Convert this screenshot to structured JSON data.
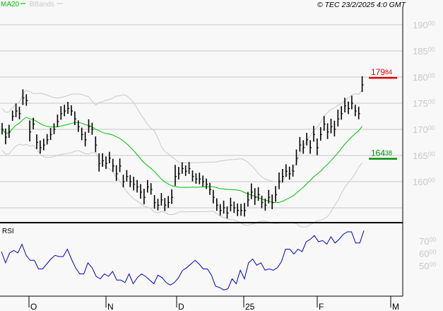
{
  "legend": {
    "ma_label": "MA20",
    "bb_label": "BBands",
    "ma_color": "#00c000",
    "bb_color": "#c8c8c8"
  },
  "copyright": "© TEC 23/2/2025 4:0 GMT",
  "rsi_label": "RSI",
  "chart_data": [
    {
      "type": "ohlc-bar",
      "ylim": [
        15350,
        19300
      ],
      "yticks": [
        {
          "value": 19000,
          "main": "190",
          "dec": "00"
        },
        {
          "value": 18500,
          "main": "185",
          "dec": "00"
        },
        {
          "value": 18000,
          "main": "180",
          "dec": "00"
        },
        {
          "value": 17500,
          "main": "175",
          "dec": "00"
        },
        {
          "value": 17000,
          "main": "170",
          "dec": "00"
        },
        {
          "value": 16500,
          "main": "165",
          "dec": "00"
        },
        {
          "value": 16000,
          "main": "160",
          "dec": "00"
        }
      ],
      "grid": true,
      "overlays": [
        "MA20",
        "BBands"
      ],
      "markers": [
        {
          "value": 17984,
          "main": "179",
          "dec": "84",
          "color": "#e00000"
        },
        {
          "value": 16438,
          "main": "164",
          "dec": "38",
          "color": "#009000"
        }
      ],
      "xticks": [
        "O",
        "N",
        "D",
        "25",
        "F",
        "M"
      ],
      "closes": [
        17000,
        16850,
        16950,
        17250,
        17350,
        17300,
        17600,
        17550,
        16950,
        17100,
        16750,
        16650,
        16700,
        16800,
        16900,
        17000,
        17150,
        17300,
        17350,
        17400,
        17350,
        17200,
        17050,
        16900,
        16800,
        17050,
        17000,
        16700,
        16350,
        16400,
        16350,
        16450,
        16300,
        16150,
        16300,
        16000,
        16100,
        16000,
        15950,
        15900,
        15800,
        15700,
        15900,
        15850,
        15600,
        15550,
        15650,
        15550,
        15600,
        15700,
        16100,
        16150,
        16250,
        16200,
        16250,
        16100,
        16050,
        16050,
        16000,
        15950,
        15850,
        15700,
        15550,
        15450,
        15500,
        15400,
        15550,
        15500,
        15450,
        15450,
        15450,
        15650,
        15800,
        15700,
        15750,
        15600,
        15550,
        15700,
        15600,
        15750,
        16000,
        16100,
        16200,
        16150,
        16200,
        16450,
        16700,
        16650,
        16800,
        16650,
        16900,
        16650,
        16900,
        17100,
        16950,
        17050,
        17000,
        17200,
        17300,
        17450,
        17400,
        17500,
        17350,
        17300,
        17850
      ],
      "ranges": [
        220,
        300,
        250,
        200,
        260,
        240,
        300,
        220,
        400,
        220,
        280,
        250,
        220,
        200,
        230,
        210,
        240,
        260,
        220,
        230,
        200,
        260,
        220,
        240,
        280,
        260,
        230,
        300,
        350,
        260,
        240,
        220,
        250,
        300,
        260,
        240,
        220,
        230,
        260,
        240,
        280,
        300,
        240,
        220,
        260,
        220,
        240,
        250,
        230,
        280,
        400,
        240,
        220,
        200,
        230,
        210,
        200,
        220,
        210,
        200,
        230,
        260,
        240,
        220,
        250,
        230,
        260,
        220,
        240,
        230,
        260,
        280,
        300,
        320,
        260,
        240,
        230,
        260,
        280,
        300,
        320,
        260,
        240,
        250,
        230,
        300,
        280,
        260,
        240,
        260,
        300,
        320,
        260,
        280,
        300,
        280,
        300,
        320,
        260,
        280,
        240,
        260,
        220,
        240,
        300
      ]
    },
    {
      "type": "line",
      "title": "RSI",
      "ylim": [
        25,
        82
      ],
      "yticks": [
        {
          "value": 70,
          "main": "70",
          "dec": "00"
        },
        {
          "value": 60,
          "main": "60",
          "dec": "00"
        },
        {
          "value": 50,
          "main": "50",
          "dec": "00"
        }
      ],
      "values": [
        62,
        53,
        61,
        63,
        61,
        68,
        59,
        55,
        55,
        48,
        48,
        52,
        56,
        59,
        58,
        58,
        64,
        56,
        49,
        44,
        44,
        53,
        49,
        42,
        40,
        44,
        42,
        46,
        39,
        39,
        37,
        44,
        36,
        41,
        44,
        42,
        39,
        36,
        43,
        41,
        37,
        35,
        37,
        41,
        47,
        49,
        52,
        55,
        52,
        48,
        48,
        43,
        34,
        33,
        31,
        32,
        40,
        36,
        47,
        40,
        53,
        56,
        51,
        53,
        47,
        48,
        47,
        49,
        54,
        64,
        64,
        60,
        64,
        62,
        70,
        72,
        75,
        70,
        71,
        68,
        74,
        69,
        72,
        76,
        78,
        78,
        69,
        69,
        79
      ],
      "color": "#0000cc"
    }
  ]
}
